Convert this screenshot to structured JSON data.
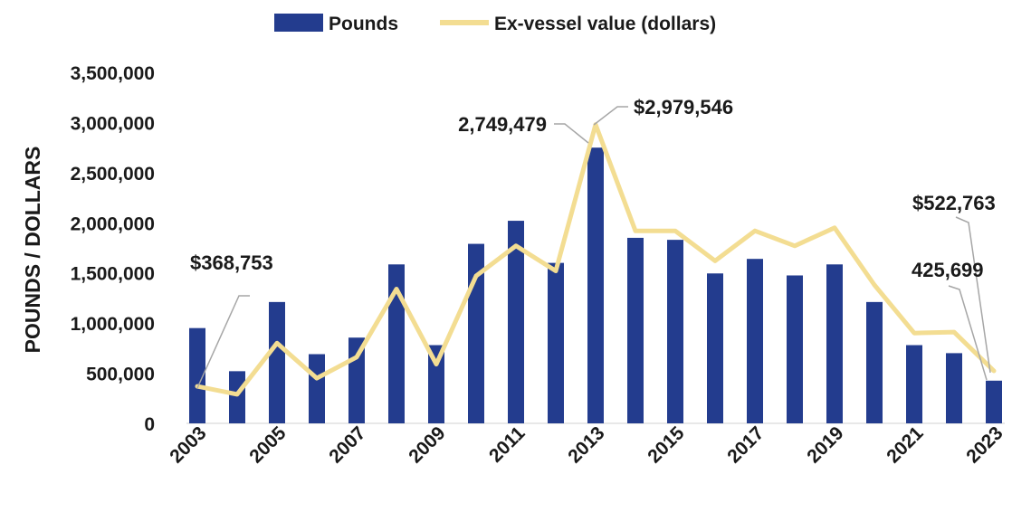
{
  "chart_data": {
    "type": "bar+line",
    "title": "",
    "xlabel": "",
    "ylabel": "POUNDS / DOLLARS",
    "ylim": [
      0,
      3500000
    ],
    "yticks": [
      0,
      500000,
      1000000,
      1500000,
      2000000,
      2500000,
      3000000,
      3500000
    ],
    "ytick_labels": [
      "0",
      "500,000",
      "1,000,000",
      "1,500,000",
      "2,000,000",
      "2,500,000",
      "3,000,000",
      "3,500,000"
    ],
    "categories": [
      "2003",
      "2004",
      "2005",
      "2006",
      "2007",
      "2008",
      "2009",
      "2010",
      "2011",
      "2012",
      "2013",
      "2014",
      "2015",
      "2016",
      "2017",
      "2018",
      "2019",
      "2020",
      "2021",
      "2022",
      "2023"
    ],
    "xtick_labels": [
      "2003",
      "2005",
      "2007",
      "2009",
      "2011",
      "2013",
      "2015",
      "2017",
      "2019",
      "2021",
      "2023"
    ],
    "legend": {
      "placement": "top-center",
      "entries": [
        "Pounds",
        "Ex-vessel value (dollars)"
      ]
    },
    "series": [
      {
        "name": "Pounds",
        "type": "bar",
        "color": "#233C8E",
        "values": [
          950000,
          520000,
          1210000,
          690000,
          855000,
          1585000,
          780000,
          1790000,
          2020000,
          1600000,
          2749479,
          1850000,
          1830000,
          1495000,
          1640000,
          1475000,
          1585000,
          1210000,
          780000,
          700000,
          425699
        ]
      },
      {
        "name": "Ex-vessel value (dollars)",
        "type": "line",
        "color": "#F3DD92",
        "values": [
          368753,
          290000,
          800000,
          450000,
          660000,
          1340000,
          590000,
          1470000,
          1770000,
          1520000,
          2979546,
          1920000,
          1920000,
          1620000,
          1920000,
          1770000,
          1950000,
          1380000,
          900000,
          910000,
          522763
        ]
      }
    ],
    "annotations": [
      {
        "text": "$368,753",
        "series": 1,
        "index": 0
      },
      {
        "text": "2,749,479",
        "series": 0,
        "index": 10
      },
      {
        "text": "$2,979,546",
        "series": 1,
        "index": 10
      },
      {
        "text": "$522,763",
        "series": 1,
        "index": 20
      },
      {
        "text": "425,699",
        "series": 0,
        "index": 20
      }
    ]
  }
}
